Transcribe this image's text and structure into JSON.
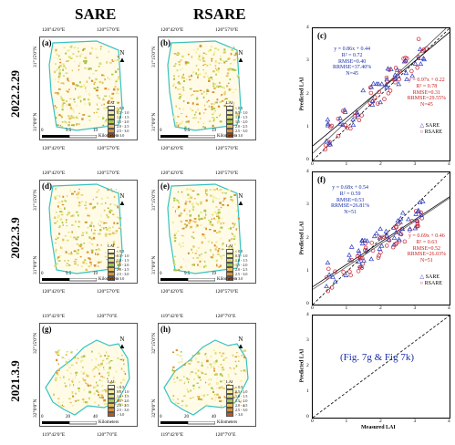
{
  "columns": {
    "left": "SARE",
    "right": "RSARE"
  },
  "rows": [
    {
      "date": "2022.2.29"
    },
    {
      "date": "2022.3.9"
    },
    {
      "date": "2021.3.9"
    }
  ],
  "maps": {
    "panels": [
      {
        "id": "a",
        "label": "(a)",
        "top_lon": [
          "120°42'0\"E",
          "120°57'0\"E"
        ],
        "bottom_lon": [
          "120°42'0\"E",
          "120°57'0\"E"
        ],
        "lat": [
          "31°15'0\"N",
          "31°0'0\"N"
        ],
        "scale": [
          "0",
          "9.5",
          "19"
        ],
        "km": "Kilometers",
        "colors": {
          "boundary": "#37c2c2"
        }
      },
      {
        "id": "b",
        "label": "(b)",
        "top_lon": [
          "120°42'0\"E",
          "120°57'0\"E"
        ],
        "bottom_lon": [
          "120°42'0\"E",
          "120°57'0\"E"
        ],
        "lat": [
          "31°15'0\"N",
          "31°0'0\"N"
        ],
        "scale": [
          "0",
          "9.5",
          "19"
        ],
        "km": "Kilometers",
        "colors": {
          "boundary": "#37c2c2"
        }
      },
      {
        "id": "d",
        "label": "(d)",
        "top_lon": [
          "120°42'0\"E",
          "120°57'0\"E"
        ],
        "bottom_lon": [
          "120°42'0\"E",
          "120°57'0\"E"
        ],
        "lat": [
          "31°15'0\"N",
          "31°0'0\"N"
        ],
        "scale": [
          "0",
          "9.5",
          "19"
        ],
        "km": "Kilometers",
        "colors": {
          "boundary": "#37c2c2"
        }
      },
      {
        "id": "e",
        "label": "(e)",
        "top_lon": [
          "120°42'0\"E",
          "120°57'0\"E"
        ],
        "bottom_lon": [
          "120°42'0\"E",
          "120°57'0\"E"
        ],
        "lat": [
          "31°15'0\"N",
          "31°0'0\"N"
        ],
        "scale": [
          "0",
          "9.5",
          "19"
        ],
        "km": "Kilometers",
        "colors": {
          "boundary": "#37c2c2"
        }
      },
      {
        "id": "g",
        "label": "(g)",
        "top_lon": [
          "119°42'0\"E",
          "120°7'0\"E"
        ],
        "bottom_lon": [
          "119°42'0\"E",
          "120°7'0\"E"
        ],
        "lat": [
          "32°15'0\"N",
          "32°0'0\"N"
        ],
        "scale": [
          "0",
          "20",
          "40"
        ],
        "km": "Kilometers",
        "colors": {
          "boundary": "#37c2c2"
        }
      },
      {
        "id": "h",
        "label": "(h)",
        "top_lon": [
          "119°42'0\"E",
          "120°7'0\"E"
        ],
        "bottom_lon": [
          "119°42'0\"E",
          "120°7'0\"E"
        ],
        "lat": [
          "32°15'0\"N",
          "32°0'0\"N"
        ],
        "scale": [
          "0",
          "20",
          "40"
        ],
        "km": "Kilometers",
        "colors": {
          "boundary": "#37c2c2"
        }
      }
    ],
    "legend": {
      "title": "LAI",
      "items": [
        "< 0.5",
        "0.5 - 1.0",
        "1.0 - 1.5",
        "1.5 - 2.0",
        "2.0 - 2.5",
        "2.5 - 3.0",
        "> 3.0"
      ],
      "colors": [
        "#fff7d6",
        "#f3ec98",
        "#d6de70",
        "#a7c546",
        "#e9c05a",
        "#d9902f",
        "#b8581d"
      ]
    },
    "north": "N"
  },
  "scatters": {
    "xlabel": "Measured LAI",
    "ylabel": "Predicted LAI",
    "legend": [
      "SARE",
      "RSARE"
    ],
    "colors": {
      "sare": "#2d3cc0",
      "rsare": "#c21f2f"
    },
    "panels": [
      {
        "label": "(c)",
        "blue_eq": [
          "y = 0.86x + 0.44",
          "R² = 0.72",
          "RMSE=0.40",
          "RRMSE=37.40%",
          "N=45"
        ],
        "red_eq": [
          "y = 0.97x + 0.22",
          "R² = 0.78",
          "RMSE=0.31",
          "RRMSE=29.55%",
          "N=45"
        ]
      },
      {
        "label": "(f)",
        "blue_eq": [
          "y = 0.68x + 0.54",
          "R² = 0.59",
          "RMSE=0.53",
          "RRMSE=26.81%",
          "N=51"
        ],
        "red_eq": [
          "y = 0.69x + 0.46",
          "R² = 0.63",
          "RMSE=0.52",
          "RRMSE=26.03%",
          "N=51"
        ]
      },
      {
        "label": "",
        "placeholder": "(Fig. 7g & Fig 7k)"
      }
    ],
    "ticks": [
      "0",
      "1",
      "2",
      "3",
      "4"
    ]
  }
}
